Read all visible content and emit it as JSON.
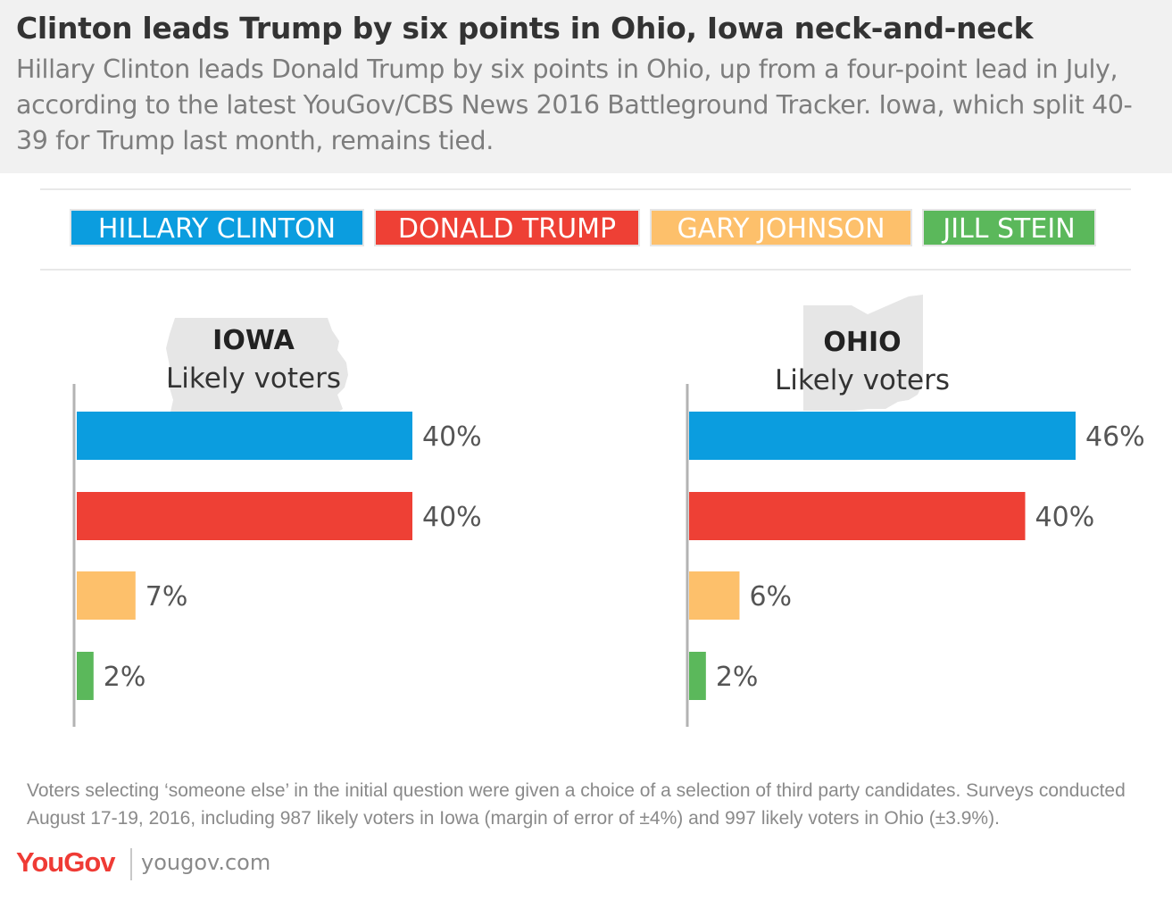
{
  "header": {
    "title": "Clinton leads Trump by six points in Ohio, Iowa neck-and-neck",
    "subtitle": "Hillary Clinton  leads Donald Trump by six points in Ohio, up from a four-point lead in July, according to the latest YouGov/CBS News 2016 Battleground Tracker. Iowa, which split 40-39 for Trump last month, remains tied."
  },
  "legend": [
    {
      "label": "HILLARY CLINTON",
      "color": "#0b9ddf"
    },
    {
      "label": "DONALD TRUMP",
      "color": "#ee4035"
    },
    {
      "label": "GARY JOHNSON",
      "color": "#fdc06b"
    },
    {
      "label": "JILL STEIN",
      "color": "#5bb85b"
    }
  ],
  "chart_data": [
    {
      "type": "bar",
      "orientation": "horizontal",
      "title": "IOWA",
      "subtitle": "Likely voters",
      "categories": [
        "HILLARY CLINTON",
        "DONALD TRUMP",
        "GARY JOHNSON",
        "JILL STEIN"
      ],
      "values": [
        40,
        40,
        7,
        2
      ],
      "value_labels": [
        "40%",
        "40%",
        "7%",
        "2%"
      ],
      "colors": [
        "#0b9ddf",
        "#ee4035",
        "#fdc06b",
        "#5bb85b"
      ],
      "unit": "%",
      "xlim": [
        0,
        50
      ],
      "grid": false,
      "legend": "top"
    },
    {
      "type": "bar",
      "orientation": "horizontal",
      "title": "OHIO",
      "subtitle": "Likely voters",
      "categories": [
        "HILLARY CLINTON",
        "DONALD TRUMP",
        "GARY JOHNSON",
        "JILL STEIN"
      ],
      "values": [
        46,
        40,
        6,
        2
      ],
      "value_labels": [
        "46%",
        "40%",
        "6%",
        "2%"
      ],
      "colors": [
        "#0b9ddf",
        "#ee4035",
        "#fdc06b",
        "#5bb85b"
      ],
      "unit": "%",
      "xlim": [
        0,
        50
      ],
      "grid": false,
      "legend": "top"
    }
  ],
  "footnote": "Voters selecting ‘someone else’ in the initial question were given a choice of a selection of third party candidates. Surveys conducted August 17-19, 2016, including 987 likely voters in Iowa (margin of error of ±4%) and 997 likely voters in Ohio (±3.9%).",
  "brand": {
    "logo": "YouGov",
    "url": "yougov.com"
  },
  "colors": {
    "header_bg": "#f1f1f1",
    "title": "#333333",
    "subtitle": "#7d7d7d",
    "axis": "#b3b3b3",
    "state_silhouette": "#e6e6e6",
    "brand": "#ef3b35"
  }
}
